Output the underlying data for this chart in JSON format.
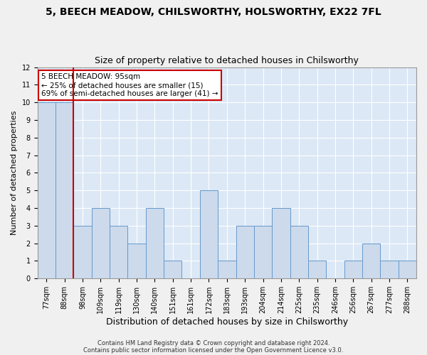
{
  "title1": "5, BEECH MEADOW, CHILSWORTHY, HOLSWORTHY, EX22 7FL",
  "title2": "Size of property relative to detached houses in Chilsworthy",
  "xlabel": "Distribution of detached houses by size in Chilsworthy",
  "ylabel": "Number of detached properties",
  "bins": [
    "77sqm",
    "88sqm",
    "98sqm",
    "109sqm",
    "119sqm",
    "130sqm",
    "140sqm",
    "151sqm",
    "161sqm",
    "172sqm",
    "183sqm",
    "193sqm",
    "204sqm",
    "214sqm",
    "225sqm",
    "235sqm",
    "246sqm",
    "256sqm",
    "267sqm",
    "277sqm",
    "288sqm"
  ],
  "values": [
    10,
    10,
    3,
    4,
    3,
    2,
    4,
    1,
    0,
    5,
    1,
    3,
    3,
    4,
    3,
    1,
    0,
    1,
    2,
    1,
    1
  ],
  "bar_color": "#ccdaec",
  "bar_edge_color": "#6699cc",
  "red_line_x": 1.5,
  "annotation_line1": "5 BEECH MEADOW: 95sqm",
  "annotation_line2": "← 25% of detached houses are smaller (15)",
  "annotation_line3": "69% of semi-detached houses are larger (41) →",
  "annotation_box_color": "#ffffff",
  "annotation_box_edge": "#cc0000",
  "ylim": [
    0,
    12
  ],
  "yticks": [
    0,
    1,
    2,
    3,
    4,
    5,
    6,
    7,
    8,
    9,
    10,
    11,
    12
  ],
  "footer1": "Contains HM Land Registry data © Crown copyright and database right 2024.",
  "footer2": "Contains public sector information licensed under the Open Government Licence v3.0.",
  "fig_background": "#f0f0f0",
  "plot_background": "#dce8f5",
  "grid_color": "#ffffff",
  "title1_fontsize": 10,
  "title2_fontsize": 9,
  "ylabel_fontsize": 8,
  "xlabel_fontsize": 9,
  "tick_fontsize": 7,
  "annotation_fontsize": 7.5,
  "footer_fontsize": 6
}
